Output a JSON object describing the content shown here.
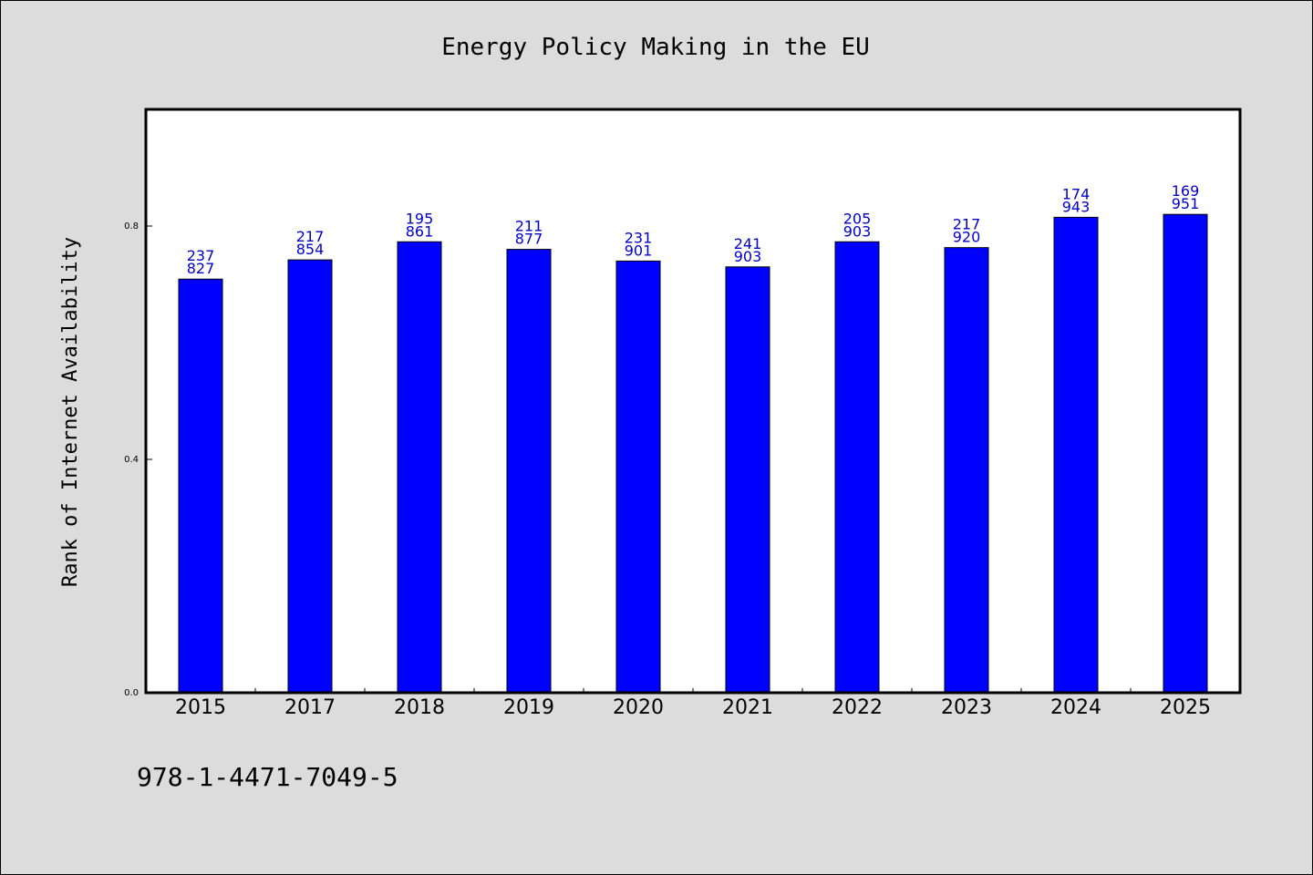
{
  "chart_data": {
    "type": "bar",
    "title": "Energy Policy Making in the EU",
    "xlabel": "",
    "ylabel": "Rank of Internet Availability",
    "categories": [
      "2015",
      "2017",
      "2018",
      "2019",
      "2020",
      "2021",
      "2022",
      "2023",
      "2024",
      "2025"
    ],
    "values": [
      0.709,
      0.742,
      0.773,
      0.76,
      0.74,
      0.73,
      0.773,
      0.763,
      0.815,
      0.82
    ],
    "data_labels_top": [
      "237",
      "217",
      "195",
      "211",
      "231",
      "241",
      "205",
      "217",
      "174",
      "169"
    ],
    "data_labels_bottom": [
      "827",
      "854",
      "861",
      "877",
      "901",
      "903",
      "903",
      "920",
      "943",
      "951"
    ],
    "yticks": [
      0.0,
      0.4,
      0.8
    ],
    "ytick_labels": [
      "0.0",
      "0.4",
      "0.8"
    ],
    "ylim": [
      0,
      1.0
    ],
    "grid": false,
    "bar_color": "#0000ff",
    "label_color": "#0000cc",
    "background_color": "#dcdcdc",
    "plot_background": "#ffffff"
  },
  "footer": {
    "isbn": "978-1-4471-7049-5"
  }
}
